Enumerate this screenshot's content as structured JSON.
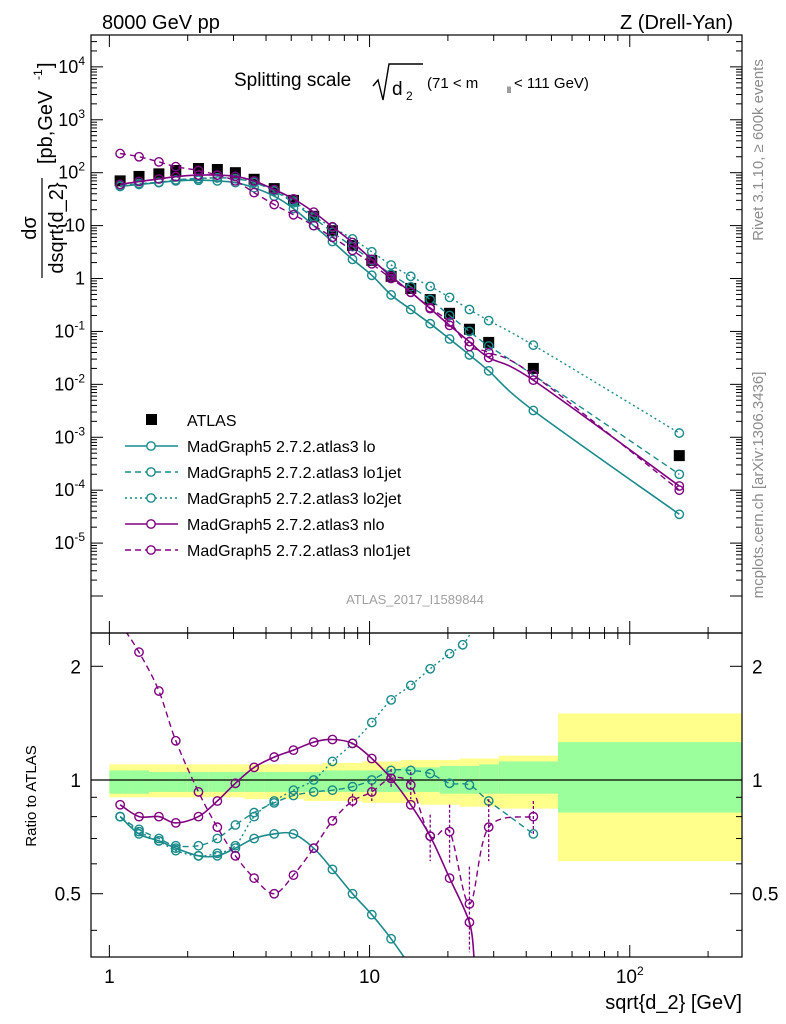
{
  "header": {
    "left": "8000 GeV pp",
    "right": "Z (Drell-Yan)"
  },
  "side_labels": {
    "rivet": "Rivet 3.1.10, ≥ 600k events",
    "mcplots": "mcplots.cern.ch [arXiv:1306.3436]"
  },
  "chart_data": [
    {
      "type": "line",
      "panel": "main",
      "title_main": "Splitting scale",
      "title_sqrt": "d",
      "title_sqrt_sub": "2",
      "title_range_pre": "(71 < m",
      "title_range_sub": "ll",
      "title_range_post": " < 111 GeV)",
      "watermark": "ATLAS_2017_I1589844",
      "ylabel_num": "dσ",
      "ylabel_den": "dsqrt{d_2}",
      "ylabel_units": "[pb,GeV",
      "ylabel_units_sup": "-1",
      "ylabel_units_close": "]",
      "x_scale": "log",
      "y_scale": "log",
      "xlim": [
        0.85,
        270
      ],
      "ylim": [
        2e-07,
        40000
      ],
      "ytick_labels": [
        {
          "v": 1e-05,
          "base": "10",
          "exp": "-5"
        },
        {
          "v": 0.0001,
          "base": "10",
          "exp": "-4"
        },
        {
          "v": 0.001,
          "base": "10",
          "exp": "-3"
        },
        {
          "v": 0.01,
          "base": "10",
          "exp": "-2"
        },
        {
          "v": 0.1,
          "base": "10",
          "exp": "-1"
        },
        {
          "v": 1,
          "base": "1",
          "exp": ""
        },
        {
          "v": 10,
          "base": "10",
          "exp": ""
        },
        {
          "v": 100,
          "base": "10",
          "exp": "2"
        },
        {
          "v": 1000,
          "base": "10",
          "exp": "3"
        },
        {
          "v": 10000,
          "base": "10",
          "exp": "4"
        }
      ],
      "legend_position": "lower-left",
      "series": [
        {
          "name": "ATLAS",
          "style": "data",
          "color": "#000000",
          "x": [
            1.1,
            1.3,
            1.55,
            1.8,
            2.2,
            2.6,
            3.05,
            3.6,
            4.3,
            5.1,
            6.1,
            7.2,
            8.6,
            10.2,
            12.1,
            14.4,
            17.1,
            20.3,
            24.2,
            28.7,
            42.6,
            155
          ],
          "y": [
            70,
            85,
            95,
            110,
            120,
            115,
            100,
            75,
            50,
            30,
            15,
            8,
            4.2,
            2.2,
            1.1,
            0.65,
            0.4,
            0.22,
            0.11,
            0.062,
            0.02,
            0.00045
          ]
        },
        {
          "name": "MadGraph5 2.7.2.atlas3 lo",
          "style": "solid",
          "color": "#1a8a8a",
          "x": [
            1.1,
            1.3,
            1.55,
            1.8,
            2.2,
            2.6,
            3.05,
            3.6,
            4.3,
            5.1,
            6.1,
            7.2,
            8.6,
            10.2,
            12.1,
            14.4,
            17.1,
            20.3,
            24.2,
            28.7,
            42.6,
            155
          ],
          "y": [
            55,
            60,
            65,
            70,
            72,
            70,
            65,
            52,
            36,
            21,
            10,
            5,
            2.3,
            1.15,
            0.49,
            0.26,
            0.14,
            0.072,
            0.036,
            0.018,
            0.0032,
            3.5e-05
          ]
        },
        {
          "name": "MadGraph5 2.7.2.atlas3 lo1jet",
          "style": "dashed",
          "color": "#1a8a8a",
          "x": [
            1.1,
            1.3,
            1.55,
            1.8,
            2.2,
            2.6,
            3.05,
            3.6,
            4.3,
            5.1,
            6.1,
            7.2,
            8.6,
            10.2,
            12.1,
            14.4,
            17.1,
            20.3,
            24.2,
            28.7,
            42.6,
            155
          ],
          "y": [
            56,
            62,
            66,
            73,
            78,
            80,
            77,
            65,
            45,
            27,
            14,
            7.5,
            4,
            2.2,
            1.2,
            0.7,
            0.4,
            0.2,
            0.1,
            0.053,
            0.015,
            0.0002
          ]
        },
        {
          "name": "MadGraph5 2.7.2.atlas3 lo2jet",
          "style": "dotted",
          "color": "#1a8a8a",
          "x": [
            1.1,
            1.3,
            1.55,
            1.8,
            2.2,
            2.6,
            3.05,
            3.6,
            4.3,
            5.1,
            6.1,
            7.2,
            8.6,
            10.2,
            12.1,
            14.4,
            17.1,
            20.3,
            24.2,
            28.7,
            42.6,
            155
          ],
          "y": [
            56,
            62,
            65,
            72,
            77,
            80,
            77,
            66,
            46,
            29,
            15,
            9.3,
            5.6,
            3.2,
            1.8,
            1.1,
            0.71,
            0.44,
            0.26,
            0.16,
            0.055,
            0.0012
          ]
        },
        {
          "name": "MadGraph5 2.7.2.atlas3 nlo",
          "style": "solid",
          "color": "#800080",
          "x": [
            1.1,
            1.3,
            1.55,
            1.8,
            2.2,
            2.6,
            3.05,
            3.6,
            4.3,
            5.1,
            6.1,
            7.2,
            8.6,
            10.2,
            12.1,
            14.4,
            17.1,
            20.3,
            24.2,
            28.7,
            42.6,
            155
          ],
          "y": [
            60,
            68,
            76,
            84,
            90,
            90,
            85,
            70,
            48,
            32,
            18,
            9.5,
            4.8,
            2.3,
            1.1,
            0.55,
            0.27,
            0.13,
            0.064,
            0.032,
            0.012,
            0.00012
          ]
        },
        {
          "name": "MadGraph5 2.7.2.atlas3 nlo1jet",
          "style": "dashed",
          "color": "#800080",
          "x": [
            1.1,
            1.3,
            1.55,
            1.8,
            2.2,
            2.6,
            3.05,
            3.6,
            4.3,
            5.1,
            6.1,
            7.2,
            8.6,
            10.2,
            12.1,
            14.4,
            17.1,
            20.3,
            24.2,
            28.7,
            42.6,
            155
          ],
          "y": [
            230,
            200,
            160,
            130,
            110,
            90,
            70,
            42,
            25,
            16,
            10,
            6,
            3.4,
            1.9,
            1,
            0.55,
            0.28,
            0.15,
            0.052,
            0.04,
            0.015,
            0.0001
          ]
        }
      ]
    },
    {
      "type": "line",
      "panel": "ratio",
      "ylabel": "Ratio to ATLAS",
      "xlabel": "sqrt{d_2} [GeV]",
      "x_scale": "log",
      "y_scale": "log",
      "xlim": [
        0.85,
        270
      ],
      "ylim": [
        0.34,
        2.45
      ],
      "xtick_labels": [
        {
          "v": 1,
          "base": "1",
          "exp": ""
        },
        {
          "v": 10,
          "base": "10",
          "exp": ""
        },
        {
          "v": 100,
          "base": "10",
          "exp": "2"
        }
      ],
      "ytick_labels": [
        {
          "v": 0.5,
          "label": "0.5"
        },
        {
          "v": 1,
          "label": "1"
        },
        {
          "v": 2,
          "label": "2"
        }
      ],
      "bands": {
        "edges": [
          1,
          1.2,
          1.42,
          1.68,
          2,
          2.4,
          2.83,
          3.3,
          3.96,
          4.67,
          5.6,
          6.6,
          7.9,
          9.4,
          11.2,
          13.2,
          15.7,
          18.6,
          22.2,
          26.4,
          31.4,
          53,
          270
        ],
        "stat": [
          0.92,
          0.92,
          0.93,
          0.93,
          0.93,
          0.93,
          0.93,
          0.93,
          0.93,
          0.93,
          0.93,
          0.93,
          0.93,
          0.93,
          0.93,
          0.93,
          0.93,
          0.92,
          0.92,
          0.92,
          0.92,
          0.82
        ],
        "stat_hi": [
          1.06,
          1.06,
          1.05,
          1.05,
          1.05,
          1.05,
          1.05,
          1.05,
          1.05,
          1.05,
          1.05,
          1.06,
          1.06,
          1.06,
          1.07,
          1.08,
          1.08,
          1.09,
          1.09,
          1.1,
          1.12,
          1.26
        ],
        "total": [
          0.9,
          0.9,
          0.9,
          0.9,
          0.9,
          0.9,
          0.9,
          0.89,
          0.89,
          0.89,
          0.88,
          0.88,
          0.88,
          0.87,
          0.87,
          0.87,
          0.86,
          0.86,
          0.85,
          0.85,
          0.84,
          0.61
        ],
        "total_hi": [
          1.1,
          1.1,
          1.1,
          1.1,
          1.1,
          1.1,
          1.1,
          1.1,
          1.1,
          1.1,
          1.1,
          1.11,
          1.11,
          1.12,
          1.12,
          1.13,
          1.13,
          1.13,
          1.14,
          1.14,
          1.16,
          1.5
        ]
      },
      "series": [
        {
          "name": "MadGraph5 2.7.2.atlas3 lo",
          "style": "solid",
          "color": "#1a8a8a",
          "x": [
            1.1,
            1.3,
            1.55,
            1.8,
            2.2,
            2.6,
            3.05,
            3.6,
            4.3,
            5.1,
            6.1,
            7.2,
            8.6,
            10.2,
            12.1,
            14.4
          ],
          "y": [
            0.8,
            0.72,
            0.69,
            0.66,
            0.63,
            0.63,
            0.66,
            0.7,
            0.72,
            0.72,
            0.66,
            0.58,
            0.5,
            0.44,
            0.38,
            0.32
          ]
        },
        {
          "name": "MadGraph5 2.7.2.atlas3 lo1jet",
          "style": "dashed",
          "color": "#1a8a8a",
          "x": [
            1.1,
            1.3,
            1.55,
            1.8,
            2.2,
            2.6,
            3.05,
            3.6,
            4.3,
            5.1,
            6.1,
            7.2,
            8.6,
            10.2,
            12.1,
            14.4,
            17.1,
            20.3,
            24.2,
            28.7,
            42.6
          ],
          "y": [
            0.8,
            0.74,
            0.7,
            0.67,
            0.67,
            0.7,
            0.76,
            0.82,
            0.87,
            0.91,
            0.93,
            0.94,
            0.96,
            1,
            1.06,
            1.06,
            1.04,
            0.98,
            0.97,
            0.88,
            0.72
          ]
        },
        {
          "name": "MadGraph5 2.7.2.atlas3 lo2jet",
          "style": "dotted",
          "color": "#1a8a8a",
          "x": [
            1.1,
            1.3,
            1.55,
            1.8,
            2.2,
            2.6,
            3.05,
            3.6,
            4.3,
            5.1,
            6.1,
            7.2,
            8.6,
            10.2,
            12.1,
            14.4,
            17.1,
            20.3,
            22.8,
            24.5
          ],
          "y": [
            0.8,
            0.73,
            0.69,
            0.65,
            0.63,
            0.64,
            0.67,
            0.8,
            0.88,
            0.94,
            1,
            1.12,
            1.25,
            1.42,
            1.63,
            1.78,
            1.97,
            2.16,
            2.28,
            2.45
          ]
        },
        {
          "name": "MadGraph5 2.7.2.atlas3 nlo",
          "style": "solid",
          "color": "#800080",
          "x": [
            1.1,
            1.3,
            1.55,
            1.8,
            2.2,
            2.6,
            3.05,
            3.6,
            4.3,
            5.1,
            6.1,
            7.2,
            8.6,
            10.2,
            12.1,
            14.4,
            17.1,
            20.3,
            24.2,
            25.2
          ],
          "y": [
            0.86,
            0.8,
            0.8,
            0.77,
            0.8,
            0.88,
            0.98,
            1.08,
            1.15,
            1.2,
            1.26,
            1.28,
            1.25,
            1.14,
            1.01,
            0.86,
            0.71,
            0.55,
            0.42,
            0.34
          ]
        },
        {
          "name": "MadGraph5 2.7.2.atlas3 nlo1jet",
          "style": "dashed",
          "color": "#800080",
          "x": [
            1.1,
            1.3,
            1.55,
            1.8,
            2.2,
            2.6,
            3.05,
            3.6,
            4.3,
            5.1,
            6.1,
            7.2,
            8.6,
            10.2,
            12.1,
            14.4,
            17.1,
            20.3,
            24.2,
            28.7,
            42.6
          ],
          "y": [
            2.6,
            2.18,
            1.72,
            1.27,
            0.93,
            0.75,
            0.63,
            0.55,
            0.5,
            0.56,
            0.66,
            0.78,
            0.88,
            0.93,
            1.01,
            0.97,
            0.71,
            0.73,
            0.47,
            0.75,
            0.8
          ],
          "err": [
            0,
            0,
            0,
            0,
            0,
            0,
            0,
            0,
            0,
            0,
            0,
            0,
            0.04,
            0.05,
            0.06,
            0.08,
            0.1,
            0.13,
            0.12,
            0.14,
            0.08
          ]
        }
      ]
    }
  ]
}
